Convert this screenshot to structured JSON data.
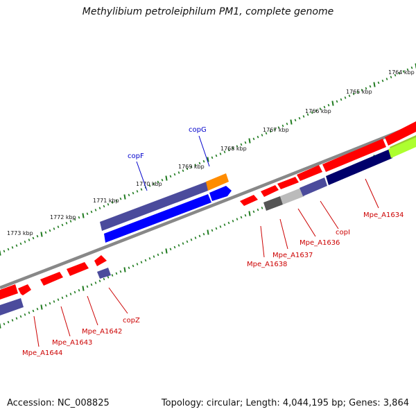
{
  "title": "Methylibium petroleiphilum PM1, complete genome",
  "footer": {
    "accession": "Accession: NC_008825",
    "summary": "Topology: circular; Length: 4,044,195 bp; Genes: 3,864"
  },
  "ruler_labels": [
    "1764 kbp",
    "1765 kbp",
    "1766 kbp",
    "1767 kbp",
    "1768 kbp",
    "1769 kbp",
    "1770 kbp",
    "1771 kbp",
    "1772 kbp",
    "1773 kbp"
  ],
  "gene_labels_blue": [
    "copG",
    "copF"
  ],
  "gene_labels_red": [
    "Mpe_A1634",
    "copI",
    "Mpe_A1636",
    "Mpe_A1637",
    "Mpe_A1638",
    "copZ",
    "Mpe_A1642",
    "Mpe_A1643",
    "Mpe_A1644"
  ],
  "colors": {
    "forward_gene": "#0000ee",
    "reverse_gene": "#ff0000",
    "blue_label": "#0000cc",
    "red_label": "#cc0000",
    "backbone": "#888888",
    "ticks": "#1e7a1e"
  }
}
